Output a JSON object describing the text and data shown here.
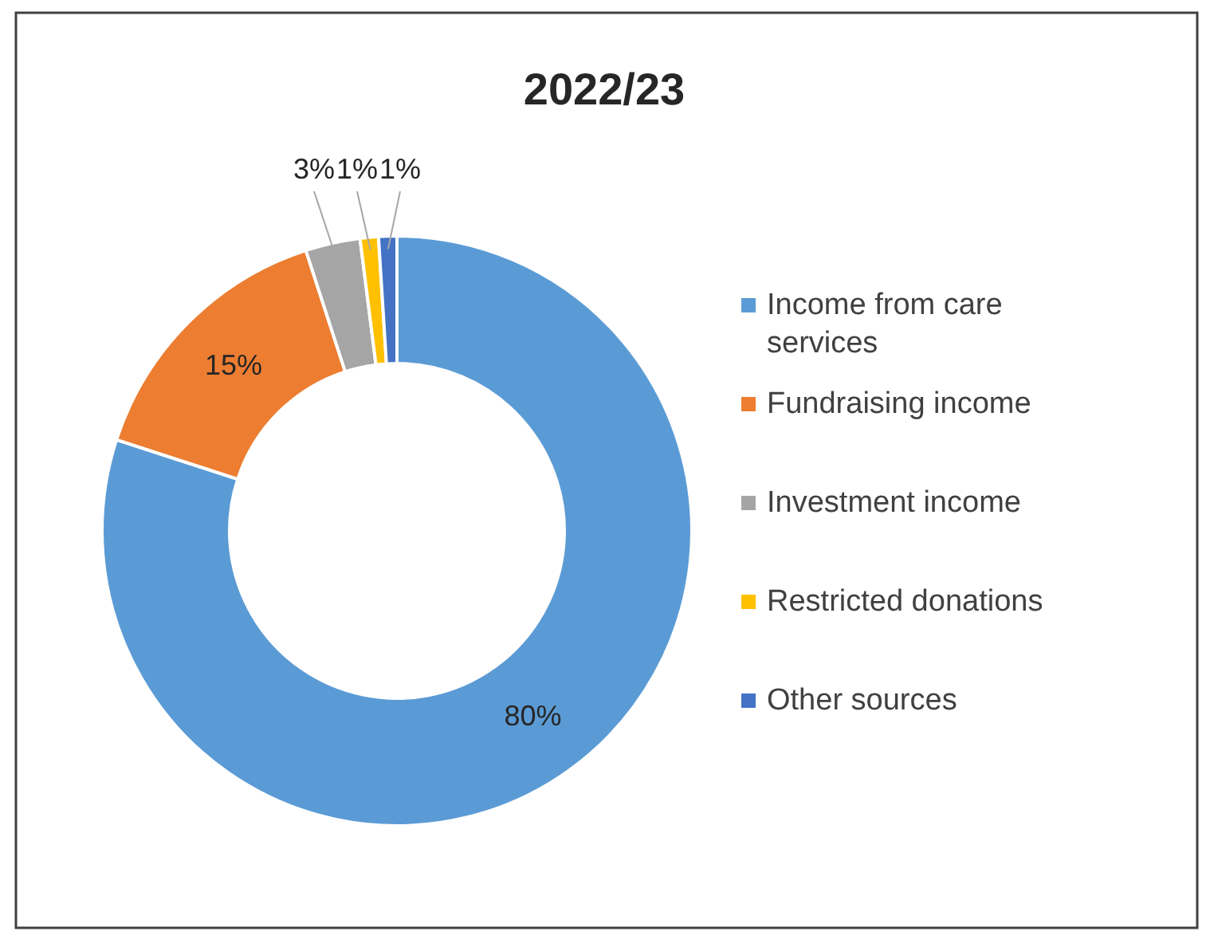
{
  "chart_data": {
    "type": "donut",
    "title": "2022/23",
    "categories": [
      "Income from care services",
      "Fundraising income",
      "Investment income",
      "Restricted donations",
      "Other sources"
    ],
    "values": [
      80,
      15,
      3,
      1,
      1
    ],
    "colors": [
      "#5b9bd5",
      "#ed7d31",
      "#a5a5a5",
      "#ffc000",
      "#4472c4"
    ],
    "value_labels": [
      "80%",
      "15%",
      "3%",
      "1%",
      "1%"
    ],
    "legend": "right"
  }
}
